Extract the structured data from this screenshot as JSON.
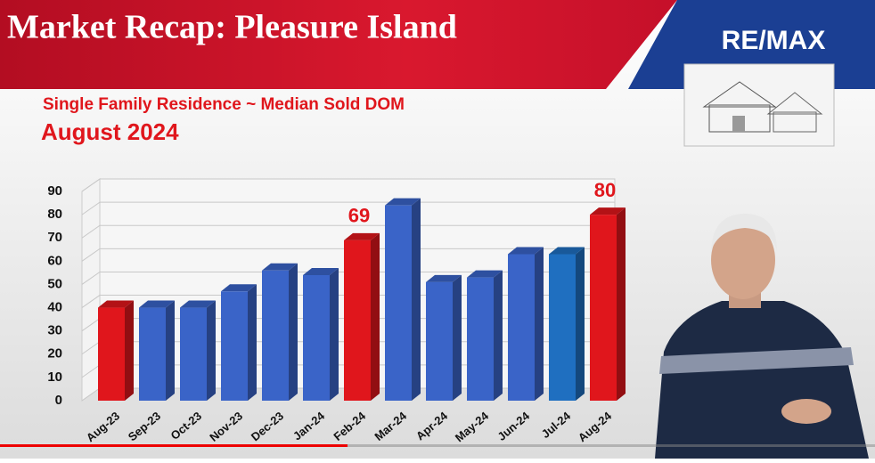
{
  "header": {
    "title": "Market Recap: Pleasure Island",
    "brand": "RE/MAX"
  },
  "chart_data": {
    "type": "bar3d",
    "title": "Single Family Residence ~ Median Sold DOM",
    "subtitle": "August 2024",
    "categories": [
      "Aug-23",
      "Sep-23",
      "Oct-23",
      "Nov-23",
      "Dec-23",
      "Jan-24",
      "Feb-24",
      "Mar-24",
      "Apr-24",
      "May-24",
      "Jun-24",
      "Jul-24",
      "Aug-24"
    ],
    "values": [
      40,
      40,
      40,
      47,
      56,
      54,
      69,
      84,
      51,
      53,
      63,
      63,
      80
    ],
    "value_labels": [
      null,
      null,
      null,
      null,
      null,
      null,
      "69",
      null,
      null,
      null,
      null,
      null,
      "80"
    ],
    "colors": [
      "#e0161c",
      "#3a64c8",
      "#3a64c8",
      "#3a64c8",
      "#3a64c8",
      "#3a64c8",
      "#e0161c",
      "#3a64c8",
      "#3a64c8",
      "#3a64c8",
      "#3a64c8",
      "#1f6fc0",
      "#e0161c"
    ],
    "ylim": [
      0,
      90
    ],
    "yticks": [
      0,
      10,
      20,
      30,
      40,
      50,
      60,
      70,
      80,
      90
    ],
    "grid": true
  }
}
